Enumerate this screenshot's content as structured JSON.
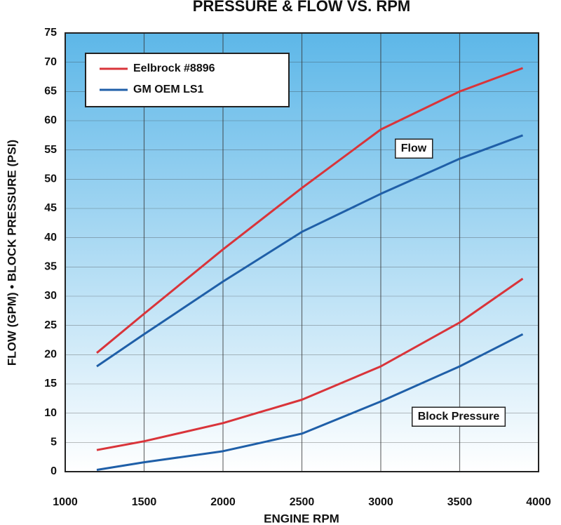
{
  "chart_data": {
    "type": "line",
    "title": "PRESSURE & FLOW VS. RPM",
    "x_label": "ENGINE RPM",
    "y_label": "FLOW (GPM) • BLOCK PRESSURE (PSI)",
    "annotations": [
      "Flow",
      "Block Pressure"
    ],
    "x": [
      1200,
      1500,
      2000,
      2500,
      3000,
      3500,
      3900
    ],
    "series": [
      {
        "name": "Eelbrock #8896",
        "color": "#d9343a",
        "values": [
          20.3,
          27,
          38,
          48.5,
          58.5,
          65,
          69
        ]
      },
      {
        "name": "GM OEM LS1",
        "color": "#1f5fa8",
        "values": [
          18,
          23.5,
          32.5,
          41,
          47.5,
          53.5,
          57.5
        ]
      },
      {
        "name": "Eelbrock #8896",
        "color": "#d9343a",
        "values": [
          3.7,
          5.2,
          8.3,
          12.3,
          18,
          25.5,
          33
        ]
      },
      {
        "name": "GM OEM LS1",
        "color": "#1f5fa8",
        "values": [
          0.3,
          1.6,
          3.5,
          6.5,
          12,
          18,
          23.5
        ]
      }
    ],
    "xlim": [
      1000,
      4000
    ],
    "xticks": [
      1000,
      1500,
      2000,
      2500,
      3000,
      3500,
      4000
    ],
    "ylim": [
      0,
      75
    ],
    "yticks": [
      0,
      5,
      10,
      15,
      20,
      25,
      30,
      35,
      40,
      45,
      50,
      55,
      60,
      65,
      70,
      75
    ],
    "grid": true,
    "legend": "upper left"
  }
}
